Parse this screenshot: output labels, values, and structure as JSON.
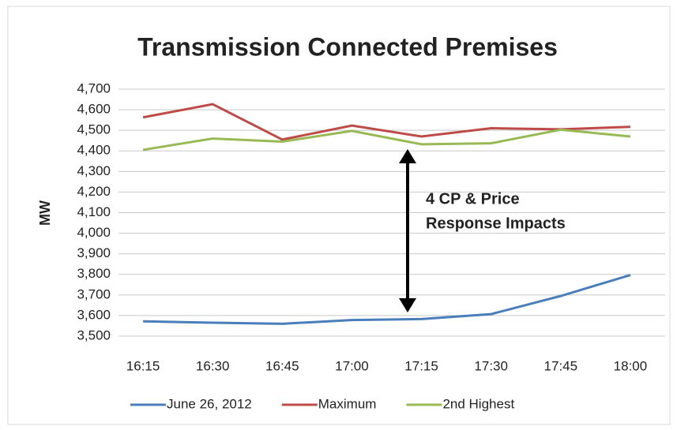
{
  "chart_data": {
    "type": "line",
    "title": "Transmission Connected Premises",
    "y_label": "MW",
    "annotation": [
      "4 CP & Price",
      "Response Impacts"
    ],
    "categories": [
      "16:15",
      "16:30",
      "16:45",
      "17:00",
      "17:15",
      "17:30",
      "17:45",
      "18:00"
    ],
    "series": [
      {
        "name": "June 26, 2012",
        "color": "#4a7ebb",
        "values": [
          3572,
          3565,
          3560,
          3578,
          3583,
          3607,
          3695,
          3797
        ]
      },
      {
        "name": "Maximum",
        "color": "#be4b48",
        "values": [
          4563,
          4627,
          4455,
          4523,
          4470,
          4510,
          4505,
          4517
        ]
      },
      {
        "name": "2nd Highest",
        "color": "#98b954",
        "values": [
          4405,
          4460,
          4445,
          4497,
          4432,
          4437,
          4503,
          4470
        ]
      }
    ],
    "ylim": [
      3500,
      4700
    ],
    "yticks": [
      {
        "value": 3500,
        "label": "3,500"
      },
      {
        "value": 3600,
        "label": "3,600"
      },
      {
        "value": 3700,
        "label": "3,700"
      },
      {
        "value": 3800,
        "label": "3,800"
      },
      {
        "value": 3900,
        "label": "3,900"
      },
      {
        "value": 4000,
        "label": "4,000"
      },
      {
        "value": 4100,
        "label": "4,100"
      },
      {
        "value": 4200,
        "label": "4,200"
      },
      {
        "value": 4300,
        "label": "4,300"
      },
      {
        "value": 4400,
        "label": "4,400"
      },
      {
        "value": 4500,
        "label": "4,500"
      },
      {
        "value": 4600,
        "label": "4,600"
      },
      {
        "value": 4700,
        "label": "4,700"
      }
    ],
    "grid": true,
    "legend": "bottom"
  }
}
